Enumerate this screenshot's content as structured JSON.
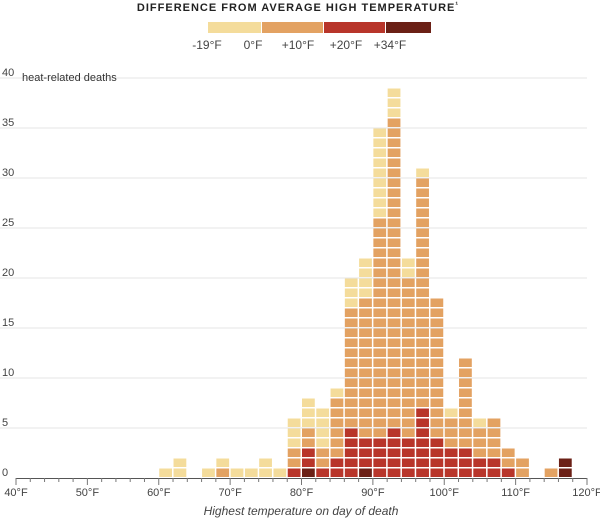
{
  "chart_data": {
    "type": "bar",
    "subtype": "stacked-unit-histogram",
    "title": "DIFFERENCE FROM AVERAGE HIGH TEMPERATURE",
    "title_marker": "¹",
    "ylabel": "heat-related deaths",
    "xlabel": "Highest temperature on day of death",
    "xlim": [
      40,
      120
    ],
    "ylim": [
      0,
      40
    ],
    "x_ticks": [
      "40°F",
      "50°F",
      "60°F",
      "70°F",
      "80°F",
      "90°F",
      "100°F",
      "110°F",
      "120°F"
    ],
    "y_ticks": [
      "0",
      "5",
      "10",
      "15",
      "20",
      "25",
      "30",
      "35",
      "40"
    ],
    "legend": {
      "labels": [
        "-19°F",
        "0°F",
        "+10°F",
        "+20°F",
        "+34°F"
      ],
      "colors": [
        "#f4dc9b",
        "#e3a262",
        "#b8352a",
        "#6b2016"
      ]
    },
    "bins": [
      {
        "x": 61,
        "counts": [
          1,
          0,
          0,
          0
        ]
      },
      {
        "x": 63,
        "counts": [
          2,
          0,
          0,
          0
        ]
      },
      {
        "x": 67,
        "counts": [
          1,
          0,
          0,
          0
        ]
      },
      {
        "x": 69,
        "counts": [
          1,
          1,
          0,
          0
        ]
      },
      {
        "x": 71,
        "counts": [
          1,
          0,
          0,
          0
        ]
      },
      {
        "x": 73,
        "counts": [
          1,
          0,
          0,
          0
        ]
      },
      {
        "x": 75,
        "counts": [
          2,
          0,
          0,
          0
        ]
      },
      {
        "x": 77,
        "counts": [
          1,
          0,
          0,
          0
        ]
      },
      {
        "x": 79,
        "counts": [
          3,
          2,
          1,
          0
        ]
      },
      {
        "x": 81,
        "counts": [
          3,
          2,
          2,
          1
        ]
      },
      {
        "x": 83,
        "counts": [
          4,
          2,
          1,
          0
        ]
      },
      {
        "x": 85,
        "counts": [
          1,
          6,
          2,
          0
        ]
      },
      {
        "x": 87,
        "counts": [
          3,
          12,
          5,
          0
        ]
      },
      {
        "x": 89,
        "counts": [
          4,
          14,
          3,
          1
        ]
      },
      {
        "x": 91,
        "counts": [
          9,
          22,
          4,
          0
        ]
      },
      {
        "x": 93,
        "counts": [
          3,
          31,
          5,
          0
        ]
      },
      {
        "x": 95,
        "counts": [
          2,
          16,
          4,
          0
        ]
      },
      {
        "x": 97,
        "counts": [
          1,
          23,
          7,
          0
        ]
      },
      {
        "x": 99,
        "counts": [
          0,
          14,
          4,
          0
        ]
      },
      {
        "x": 101,
        "counts": [
          1,
          3,
          3,
          0
        ]
      },
      {
        "x": 103,
        "counts": [
          0,
          9,
          3,
          0
        ]
      },
      {
        "x": 105,
        "counts": [
          1,
          3,
          2,
          0
        ]
      },
      {
        "x": 107,
        "counts": [
          0,
          4,
          2,
          0
        ]
      },
      {
        "x": 109,
        "counts": [
          0,
          2,
          1,
          0
        ]
      },
      {
        "x": 111,
        "counts": [
          0,
          2,
          0,
          0
        ]
      },
      {
        "x": 115,
        "counts": [
          0,
          1,
          0,
          0
        ]
      },
      {
        "x": 117,
        "counts": [
          0,
          0,
          0,
          2
        ]
      }
    ]
  }
}
